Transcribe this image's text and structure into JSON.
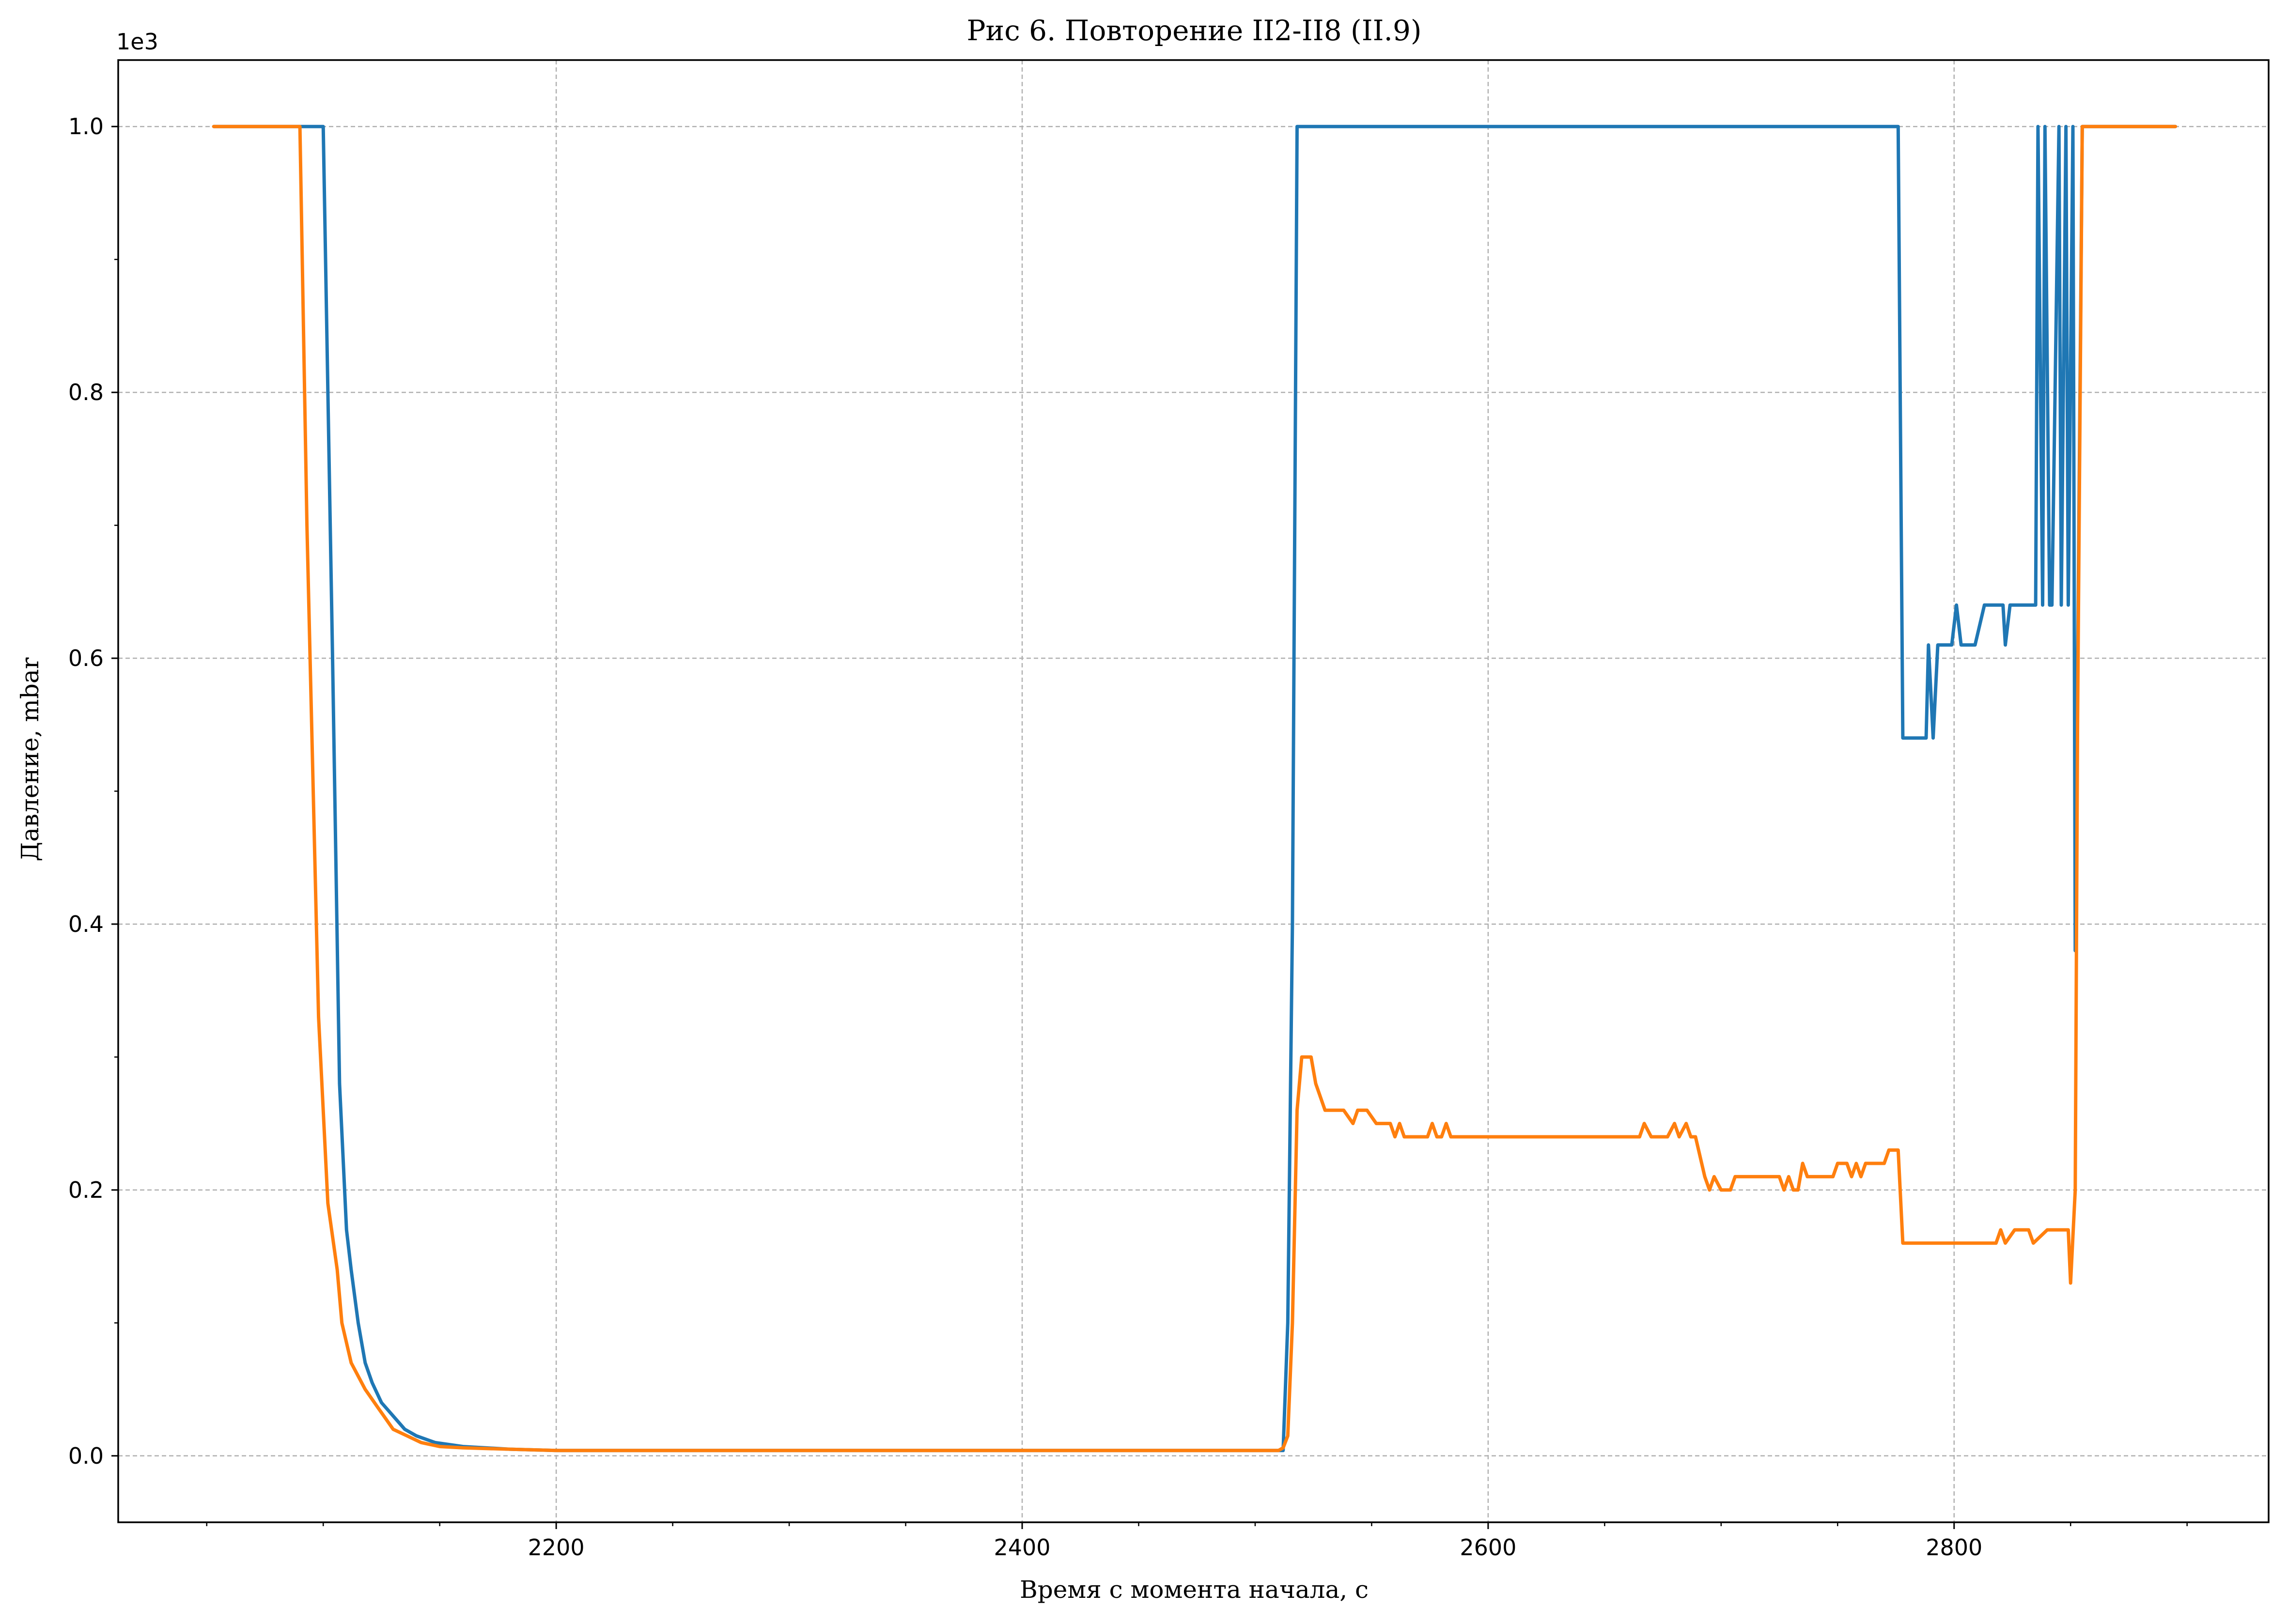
{
  "chart_data": {
    "type": "line",
    "title": "Рис 6. Повторение II2-II8 (II.9)",
    "xlabel": "Время с момента начала, с",
    "ylabel": "Давление, mbar",
    "y_offset_text": "1e3",
    "xlim": [
      2012,
      2935
    ],
    "ylim": [
      -0.05,
      1.05
    ],
    "x_ticks": [
      2200,
      2400,
      2600,
      2800
    ],
    "x_tick_labels": [
      "2200",
      "2400",
      "2600",
      "2800"
    ],
    "x_minor_ticks": [
      2050,
      2100,
      2150,
      2250,
      2300,
      2350,
      2450,
      2500,
      2550,
      2650,
      2700,
      2750,
      2850,
      2900
    ],
    "y_ticks": [
      0.0,
      0.2,
      0.4,
      0.6,
      0.8,
      1.0
    ],
    "y_tick_labels": [
      "0.0",
      "0.2",
      "0.4",
      "0.6",
      "0.8",
      "1.0"
    ],
    "y_minor_ticks": [
      0.1,
      0.3,
      0.5,
      0.7,
      0.9
    ],
    "grid": true,
    "series": [
      {
        "color": "#1f77b4",
        "x": [
          2053,
          2100,
          2104,
          2107,
          2110,
          2112,
          2115,
          2118,
          2121,
          2125,
          2130,
          2135,
          2140,
          2148,
          2160,
          2180,
          2200,
          2250,
          2350,
          2450,
          2508,
          2512,
          2514,
          2516,
          2518,
          2700,
          2776,
          2778,
          2780,
          2788,
          2789,
          2791,
          2793,
          2797,
          2799,
          2801,
          2803,
          2807,
          2809,
          2813,
          2821,
          2822,
          2824,
          2826,
          2835,
          2836,
          2838,
          2839,
          2841,
          2842,
          2845,
          2846,
          2848,
          2849,
          2851,
          2852,
          2855,
          2895
        ],
        "y": [
          1.0,
          1.0,
          0.6,
          0.28,
          0.17,
          0.14,
          0.1,
          0.07,
          0.055,
          0.04,
          0.03,
          0.02,
          0.015,
          0.01,
          0.007,
          0.005,
          0.004,
          0.004,
          0.004,
          0.004,
          0.004,
          0.004,
          0.1,
          0.4,
          1.0,
          1.0,
          1.0,
          0.54,
          0.54,
          0.54,
          0.61,
          0.54,
          0.61,
          0.61,
          0.61,
          0.64,
          0.61,
          0.61,
          0.61,
          0.64,
          0.64,
          0.61,
          0.64,
          0.64,
          0.64,
          1.0,
          0.64,
          1.0,
          0.64,
          0.64,
          1.0,
          0.64,
          1.0,
          0.64,
          1.0,
          0.38,
          1.0,
          1.0
        ]
      },
      {
        "color": "#ff7f0e",
        "x": [
          2053,
          2090,
          2093,
          2098,
          2102,
          2106,
          2108,
          2112,
          2118,
          2124,
          2130,
          2136,
          2142,
          2150,
          2160,
          2180,
          2200,
          2300,
          2400,
          2500,
          2510,
          2512,
          2514,
          2516,
          2518,
          2520,
          2524,
          2526,
          2530,
          2534,
          2538,
          2542,
          2544,
          2546,
          2548,
          2552,
          2556,
          2558,
          2560,
          2562,
          2564,
          2566,
          2568,
          2574,
          2576,
          2578,
          2580,
          2582,
          2584,
          2586,
          2588,
          2600,
          2660,
          2665,
          2667,
          2670,
          2677,
          2680,
          2682,
          2685,
          2687,
          2689,
          2693,
          2695,
          2697,
          2700,
          2702,
          2704,
          2706,
          2710,
          2725,
          2727,
          2729,
          2731,
          2733,
          2735,
          2737,
          2740,
          2744,
          2748,
          2750,
          2754,
          2756,
          2758,
          2760,
          2762,
          2770,
          2772,
          2774,
          2776,
          2778,
          2800,
          2808,
          2815,
          2818,
          2820,
          2822,
          2826,
          2830,
          2832,
          2834,
          2840,
          2848,
          2849,
          2850,
          2852,
          2853,
          2855,
          2895
        ],
        "y": [
          1.0,
          1.0,
          0.7,
          0.33,
          0.19,
          0.14,
          0.1,
          0.07,
          0.05,
          0.035,
          0.02,
          0.015,
          0.01,
          0.007,
          0.006,
          0.005,
          0.004,
          0.004,
          0.004,
          0.004,
          0.004,
          0.006,
          0.015,
          0.1,
          0.26,
          0.3,
          0.3,
          0.28,
          0.26,
          0.26,
          0.26,
          0.25,
          0.26,
          0.26,
          0.26,
          0.25,
          0.25,
          0.25,
          0.24,
          0.25,
          0.24,
          0.24,
          0.24,
          0.24,
          0.25,
          0.24,
          0.24,
          0.25,
          0.24,
          0.24,
          0.24,
          0.24,
          0.24,
          0.24,
          0.25,
          0.24,
          0.24,
          0.25,
          0.24,
          0.25,
          0.24,
          0.24,
          0.21,
          0.2,
          0.21,
          0.2,
          0.2,
          0.2,
          0.21,
          0.21,
          0.21,
          0.2,
          0.21,
          0.2,
          0.2,
          0.22,
          0.21,
          0.21,
          0.21,
          0.21,
          0.22,
          0.22,
          0.21,
          0.22,
          0.21,
          0.22,
          0.22,
          0.23,
          0.23,
          0.23,
          0.16,
          0.16,
          0.16,
          0.16,
          0.16,
          0.17,
          0.16,
          0.17,
          0.17,
          0.17,
          0.16,
          0.17,
          0.17,
          0.17,
          0.13,
          0.2,
          0.55,
          1.0,
          1.0
        ]
      }
    ]
  }
}
